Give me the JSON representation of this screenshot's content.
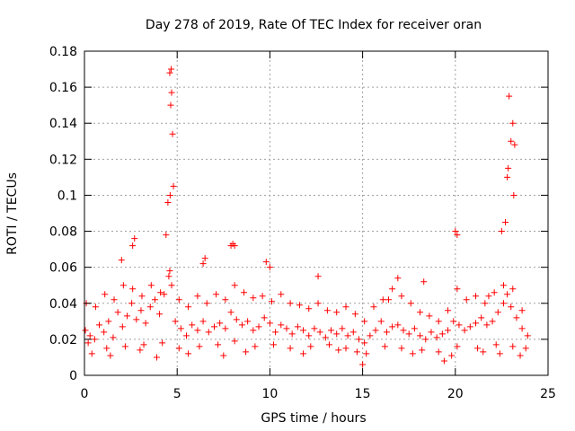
{
  "chart_data": {
    "type": "scatter",
    "title": "Day 278 of 2019, Rate Of TEC Index for receiver oran",
    "xlabel": "GPS time / hours",
    "ylabel": "ROTI / TECUs",
    "xlim": [
      0,
      25
    ],
    "ylim": [
      0,
      0.18
    ],
    "xticks": [
      0,
      5,
      10,
      15,
      20,
      25
    ],
    "yticks": [
      0,
      0.02,
      0.04,
      0.06,
      0.08,
      0.1,
      0.12,
      0.14,
      0.16,
      0.18
    ],
    "xtick_labels": [
      "0",
      "5",
      "10",
      "15",
      "20",
      "25"
    ],
    "ytick_labels": [
      "0",
      "0.02",
      "0.04",
      "0.06",
      "0.08",
      "0.1",
      "0.12",
      "0.14",
      "0.16",
      "0.18"
    ],
    "grid": true,
    "marker": "+",
    "color": "#ff0000",
    "series": [
      {
        "name": "ROTI",
        "x": [
          0.05,
          0.3,
          0.55,
          0.8,
          1.05,
          1.3,
          1.55,
          1.8,
          2.05,
          2.3,
          2.55,
          2.8,
          3.05,
          3.3,
          3.55,
          3.8,
          4.05,
          4.3,
          4.55,
          4.7,
          4.9,
          5.2,
          5.5,
          5.8,
          6.1,
          6.4,
          6.7,
          7.0,
          7.3,
          7.6,
          7.9,
          8.2,
          8.5,
          8.8,
          9.1,
          9.4,
          9.7,
          10.0,
          10.3,
          10.6,
          10.9,
          11.2,
          11.5,
          11.8,
          12.1,
          12.4,
          12.7,
          13.0,
          13.3,
          13.6,
          13.9,
          14.2,
          14.5,
          14.8,
          15.1,
          15.4,
          15.7,
          16.0,
          16.3,
          16.6,
          16.9,
          17.2,
          17.5,
          17.8,
          18.1,
          18.4,
          18.7,
          19.0,
          19.3,
          19.6,
          19.9,
          20.2,
          20.5,
          20.8,
          21.1,
          21.4,
          21.7,
          22.0,
          22.3,
          22.6,
          22.8,
          23.0,
          23.3,
          23.6,
          23.9,
          0.2,
          1.2,
          2.2,
          3.2,
          4.2,
          5.1,
          6.2,
          7.2,
          8.1,
          9.2,
          10.2,
          11.1,
          12.2,
          13.2,
          14.1,
          15.2,
          16.2,
          17.1,
          18.2,
          19.1,
          20.1,
          21.2,
          22.2,
          23.1,
          23.8,
          0.1,
          0.6,
          1.1,
          1.6,
          2.1,
          2.6,
          3.1,
          3.6,
          4.1,
          4.6,
          5.1,
          5.6,
          6.1,
          6.6,
          7.1,
          7.6,
          8.1,
          8.6,
          9.1,
          9.6,
          10.1,
          10.6,
          11.1,
          11.6,
          12.1,
          12.6,
          13.1,
          13.6,
          14.1,
          14.6,
          15.1,
          15.6,
          16.1,
          16.6,
          17.1,
          17.6,
          18.1,
          18.6,
          19.1,
          19.6,
          20.1,
          20.6,
          21.1,
          21.6,
          22.1,
          22.6,
          23.1,
          23.6,
          2.0,
          2.7,
          4.4,
          4.5,
          4.6,
          4.65,
          4.7,
          4.75,
          4.8,
          4.68,
          4.62,
          6.5,
          8.0,
          8.1,
          9.8,
          10.0,
          12.6,
          16.4,
          16.9,
          18.3,
          20.0,
          20.1,
          22.5,
          22.7,
          22.8,
          22.9,
          23.0,
          23.1,
          23.2,
          22.85,
          23.15,
          2.6,
          6.4,
          7.9,
          15.0,
          19.4,
          21.8,
          0.4,
          1.4,
          3.0,
          3.9,
          5.6,
          7.5,
          8.7,
          11.8,
          13.7,
          14.7,
          17.7,
          19.8,
          21.5,
          22.4,
          23.5
        ],
        "y": [
          0.025,
          0.022,
          0.02,
          0.028,
          0.024,
          0.03,
          0.021,
          0.035,
          0.027,
          0.033,
          0.04,
          0.031,
          0.036,
          0.029,
          0.038,
          0.042,
          0.034,
          0.045,
          0.055,
          0.05,
          0.03,
          0.026,
          0.022,
          0.028,
          0.025,
          0.03,
          0.024,
          0.027,
          0.029,
          0.026,
          0.035,
          0.031,
          0.028,
          0.03,
          0.025,
          0.027,
          0.032,
          0.029,
          0.024,
          0.028,
          0.026,
          0.023,
          0.027,
          0.025,
          0.022,
          0.026,
          0.024,
          0.021,
          0.025,
          0.023,
          0.026,
          0.022,
          0.024,
          0.02,
          0.018,
          0.022,
          0.025,
          0.03,
          0.024,
          0.027,
          0.028,
          0.025,
          0.023,
          0.026,
          0.022,
          0.02,
          0.024,
          0.021,
          0.023,
          0.025,
          0.03,
          0.028,
          0.025,
          0.027,
          0.029,
          0.032,
          0.028,
          0.03,
          0.035,
          0.04,
          0.045,
          0.038,
          0.032,
          0.026,
          0.022,
          0.018,
          0.015,
          0.016,
          0.017,
          0.018,
          0.015,
          0.016,
          0.017,
          0.019,
          0.016,
          0.017,
          0.015,
          0.016,
          0.017,
          0.015,
          0.012,
          0.016,
          0.015,
          0.014,
          0.013,
          0.016,
          0.015,
          0.017,
          0.016,
          0.015,
          0.04,
          0.038,
          0.045,
          0.042,
          0.05,
          0.048,
          0.044,
          0.05,
          0.046,
          0.058,
          0.042,
          0.038,
          0.044,
          0.04,
          0.045,
          0.042,
          0.05,
          0.046,
          0.043,
          0.044,
          0.041,
          0.045,
          0.04,
          0.039,
          0.037,
          0.04,
          0.036,
          0.035,
          0.038,
          0.034,
          0.03,
          0.038,
          0.042,
          0.048,
          0.044,
          0.04,
          0.035,
          0.033,
          0.03,
          0.036,
          0.048,
          0.042,
          0.044,
          0.04,
          0.046,
          0.05,
          0.048,
          0.036,
          0.064,
          0.076,
          0.078,
          0.096,
          0.168,
          0.15,
          0.157,
          0.134,
          0.105,
          0.17,
          0.1,
          0.065,
          0.073,
          0.072,
          0.063,
          0.06,
          0.055,
          0.042,
          0.054,
          0.052,
          0.08,
          0.078,
          0.08,
          0.085,
          0.11,
          0.155,
          0.13,
          0.14,
          0.128,
          0.115,
          0.1,
          0.072,
          0.062,
          0.072,
          0.006,
          0.008,
          0.044,
          0.012,
          0.011,
          0.014,
          0.01,
          0.012,
          0.011,
          0.013,
          0.012,
          0.014,
          0.013,
          0.012,
          0.011,
          0.013,
          0.012,
          0.011
        ]
      }
    ]
  }
}
